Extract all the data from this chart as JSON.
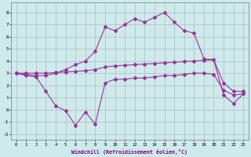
{
  "xlabel": "Windchill (Refroidissement éolien,°C)",
  "x": [
    0,
    1,
    2,
    3,
    4,
    5,
    6,
    7,
    8,
    9,
    10,
    11,
    12,
    13,
    14,
    15,
    16,
    17,
    18,
    19,
    20,
    21,
    22,
    23
  ],
  "line_upper": [
    3.0,
    2.9,
    2.8,
    2.8,
    3.0,
    3.3,
    3.7,
    4.0,
    4.8,
    6.8,
    6.5,
    7.0,
    7.5,
    7.2,
    7.6,
    8.0,
    7.2,
    6.5,
    6.3,
    4.2,
    4.1,
    1.2,
    0.5,
    1.3
  ],
  "line_mid": [
    3.0,
    3.0,
    3.0,
    3.0,
    3.05,
    3.1,
    3.15,
    3.2,
    3.3,
    3.5,
    3.6,
    3.65,
    3.7,
    3.75,
    3.8,
    3.85,
    3.9,
    3.95,
    4.0,
    4.05,
    4.1,
    2.2,
    1.5,
    1.5
  ],
  "line_lower": [
    3.0,
    2.8,
    2.7,
    1.5,
    0.3,
    -0.1,
    -1.3,
    -0.2,
    -1.2,
    2.2,
    2.5,
    2.5,
    2.6,
    2.6,
    2.7,
    2.8,
    2.8,
    2.9,
    3.0,
    3.0,
    2.9,
    1.6,
    1.2,
    1.3
  ],
  "line_color": "#993399",
  "bg_color": "#ceeaea",
  "grid_color": "#aabbcc",
  "ylim": [
    -2.5,
    8.8
  ],
  "xlim": [
    -0.5,
    23.5
  ],
  "yticks": [
    -2,
    -1,
    0,
    1,
    2,
    3,
    4,
    5,
    6,
    7,
    8
  ],
  "xticks": [
    0,
    1,
    2,
    3,
    4,
    5,
    6,
    7,
    8,
    9,
    10,
    11,
    12,
    13,
    14,
    15,
    16,
    17,
    18,
    19,
    20,
    21,
    22,
    23
  ]
}
